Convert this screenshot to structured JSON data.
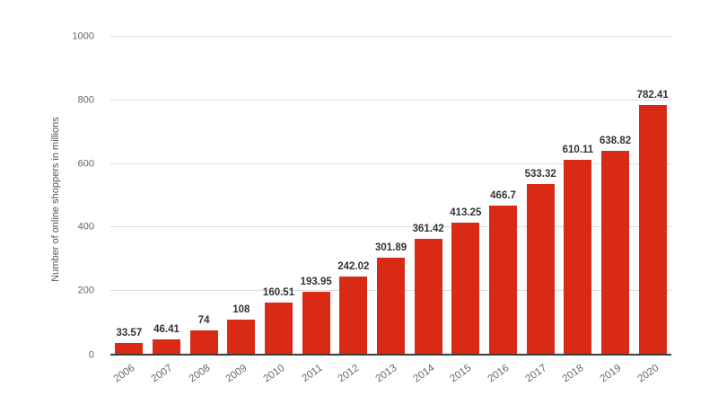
{
  "chart_data": {
    "type": "bar",
    "title": "",
    "xlabel": "",
    "ylabel": "Number of online shoppers in millions",
    "categories": [
      "2006",
      "2007",
      "2008",
      "2009",
      "2010",
      "2011",
      "2012",
      "2013",
      "2014",
      "2015",
      "2016",
      "2017",
      "2018",
      "2019",
      "2020"
    ],
    "values": [
      33.57,
      46.41,
      74,
      108,
      160.51,
      193.95,
      242.02,
      301.89,
      361.42,
      413.25,
      466.7,
      533.32,
      610.11,
      638.82,
      782.41
    ],
    "value_labels": [
      "33.57",
      "46.41",
      "74",
      "108",
      "160.51",
      "193.95",
      "242.02",
      "301.89",
      "361.42",
      "413.25",
      "466.7",
      "533.32",
      "610.11",
      "638.82",
      "782.41"
    ],
    "ylim": [
      0,
      1000
    ],
    "yticks": [
      0,
      200,
      400,
      600,
      800,
      1000
    ],
    "grid": true,
    "legend": false,
    "colors": {
      "bar": "#d92a15",
      "value_label": "#333333",
      "axis_text": "#666666",
      "gridline": "#dcdcdc",
      "baseline": "#3d3d3d",
      "background": "#ffffff"
    }
  }
}
